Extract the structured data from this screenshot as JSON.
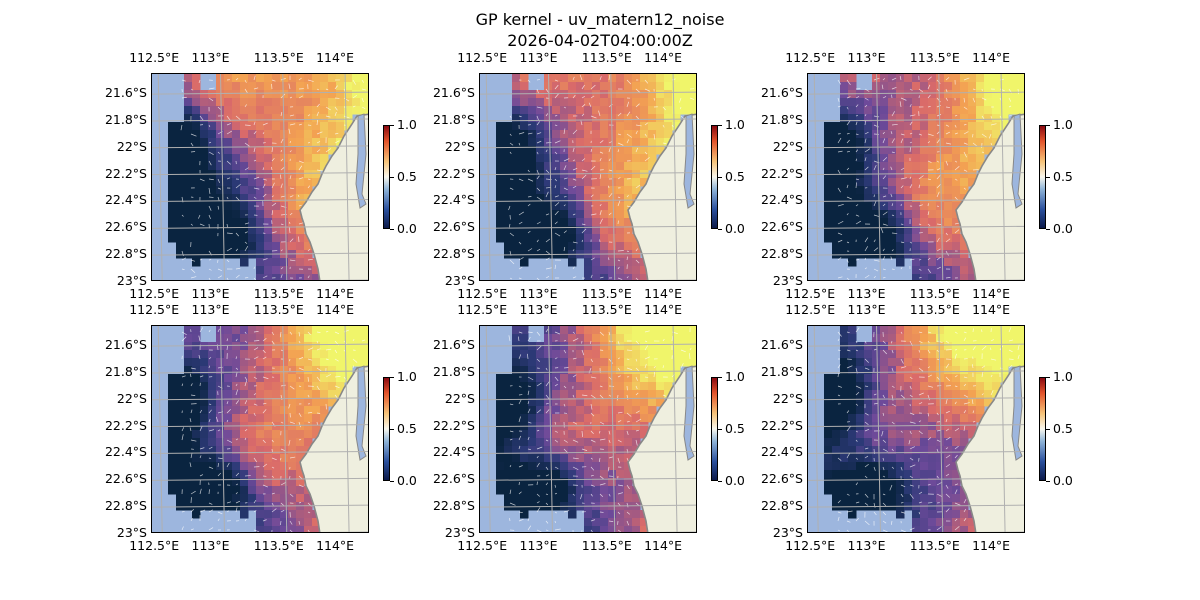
{
  "figure": {
    "title": "GP kernel - uv_matern12_noise",
    "subtitle": "2026-04-02T04:00:00Z"
  },
  "axes": {
    "lon_labels": [
      "112.5°E",
      "113°E",
      "113.5°E",
      "114°E"
    ],
    "lat_labels": [
      "21.6°S",
      "21.8°S",
      "22°S",
      "22.2°S",
      "22.4°S",
      "22.6°S",
      "22.8°S",
      "23°S"
    ],
    "lon_range": [
      112.45,
      114.2
    ],
    "lat_range": [
      -23.0,
      -21.45
    ]
  },
  "colorbar": {
    "ticks": [
      "0.0",
      "0.5",
      "1.0"
    ],
    "range": [
      0.0,
      1.0
    ]
  },
  "colors": {
    "ocean_mask": "#9db6de",
    "land": "#efefdf",
    "coast": "#888888",
    "grid": "#b0b0b0",
    "field_low": "#0a2440",
    "field_mid": "#d96a6a",
    "field_high": "#f0f56a"
  },
  "panels": [
    {
      "id": 1,
      "variant": 0
    },
    {
      "id": 2,
      "variant": 1
    },
    {
      "id": 3,
      "variant": 2
    },
    {
      "id": 4,
      "variant": 3
    },
    {
      "id": 5,
      "variant": 4
    },
    {
      "id": 6,
      "variant": 5
    }
  ]
}
